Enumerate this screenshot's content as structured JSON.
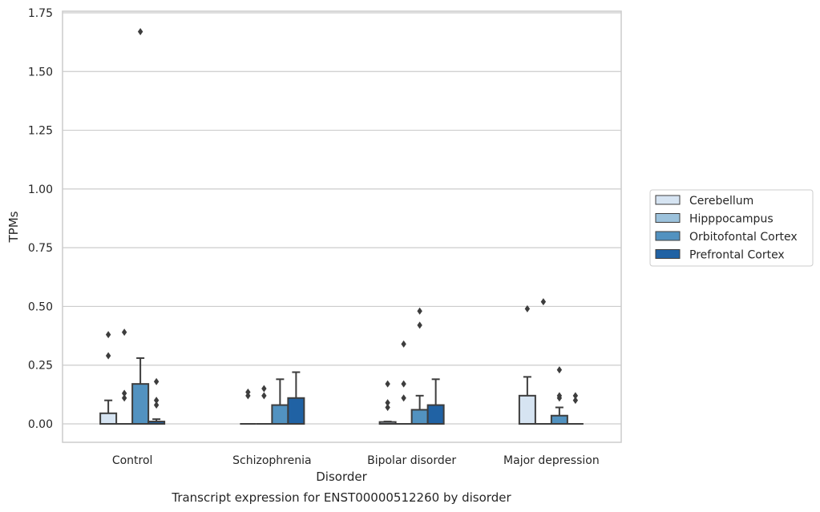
{
  "chart_data": {
    "type": "boxplot",
    "title": "Transcript expression for ENST00000512260 by disorder",
    "xlabel": "Disorder",
    "ylabel": "TPMs",
    "ylim": [
      -0.08,
      1.75
    ],
    "yticks": [
      0.0,
      0.25,
      0.5,
      0.75,
      1.0,
      1.25,
      1.5,
      1.75
    ],
    "ytick_labels": [
      "0.00",
      "0.25",
      "0.50",
      "0.75",
      "1.00",
      "1.25",
      "1.50",
      "1.75"
    ],
    "grid": "horizontal",
    "legend_position": "right",
    "categories": [
      "Control",
      "Schizophrenia",
      "Bipolar disorder",
      "Major depression"
    ],
    "series": [
      {
        "name": "Cerebellum",
        "color": "#d6e4f2",
        "boxes": [
          {
            "q1": 0.0,
            "median": 0.0,
            "q3": 0.045,
            "whisker_low": 0.0,
            "whisker_high": 0.1,
            "outliers": [
              0.29,
              0.38
            ]
          },
          {
            "q1": 0.0,
            "median": 0.0,
            "q3": 0.0,
            "whisker_low": 0.0,
            "whisker_high": 0.0,
            "outliers": [
              0.12,
              0.135
            ]
          },
          {
            "q1": 0.0,
            "median": 0.0,
            "q3": 0.008,
            "whisker_low": 0.0,
            "whisker_high": 0.01,
            "outliers": [
              0.07,
              0.09,
              0.17
            ]
          },
          {
            "q1": 0.0,
            "median": 0.0,
            "q3": 0.12,
            "whisker_low": 0.0,
            "whisker_high": 0.2,
            "outliers": [
              0.49
            ]
          }
        ]
      },
      {
        "name": "Hipppocampus",
        "color": "#9cc2dc",
        "boxes": [
          {
            "q1": 0.0,
            "median": 0.0,
            "q3": 0.0,
            "whisker_low": 0.0,
            "whisker_high": 0.0,
            "outliers": [
              0.11,
              0.13,
              0.39
            ]
          },
          {
            "q1": 0.0,
            "median": 0.0,
            "q3": 0.0,
            "whisker_low": 0.0,
            "whisker_high": 0.0,
            "outliers": [
              0.12,
              0.15
            ]
          },
          {
            "q1": 0.0,
            "median": 0.0,
            "q3": 0.0,
            "whisker_low": 0.0,
            "whisker_high": 0.0,
            "outliers": [
              0.11,
              0.17,
              0.34
            ]
          },
          {
            "q1": 0.0,
            "median": 0.0,
            "q3": 0.0,
            "whisker_low": 0.0,
            "whisker_high": 0.0,
            "outliers": [
              0.52
            ]
          }
        ]
      },
      {
        "name": "Orbitofontal Cortex",
        "color": "#5292c0",
        "boxes": [
          {
            "q1": 0.0,
            "median": 0.0,
            "q3": 0.17,
            "whisker_low": 0.0,
            "whisker_high": 0.28,
            "outliers": [
              1.67
            ]
          },
          {
            "q1": 0.0,
            "median": 0.0,
            "q3": 0.08,
            "whisker_low": 0.0,
            "whisker_high": 0.19,
            "outliers": []
          },
          {
            "q1": 0.0,
            "median": 0.0,
            "q3": 0.06,
            "whisker_low": 0.0,
            "whisker_high": 0.12,
            "outliers": [
              0.42,
              0.48
            ]
          },
          {
            "q1": 0.0,
            "median": 0.0,
            "q3": 0.035,
            "whisker_low": 0.0,
            "whisker_high": 0.07,
            "outliers": [
              0.11,
              0.12,
              0.23
            ]
          }
        ]
      },
      {
        "name": "Prefrontal Cortex",
        "color": "#2062a4",
        "boxes": [
          {
            "q1": 0.0,
            "median": 0.0,
            "q3": 0.01,
            "whisker_low": 0.0,
            "whisker_high": 0.02,
            "outliers": [
              0.08,
              0.1,
              0.18
            ]
          },
          {
            "q1": 0.0,
            "median": 0.0,
            "q3": 0.11,
            "whisker_low": 0.0,
            "whisker_high": 0.22,
            "outliers": []
          },
          {
            "q1": 0.0,
            "median": 0.0,
            "q3": 0.08,
            "whisker_low": 0.0,
            "whisker_high": 0.19,
            "outliers": []
          },
          {
            "q1": 0.0,
            "median": 0.0,
            "q3": 0.0,
            "whisker_low": 0.0,
            "whisker_high": 0.0,
            "outliers": [
              0.1,
              0.12
            ]
          }
        ]
      }
    ]
  }
}
